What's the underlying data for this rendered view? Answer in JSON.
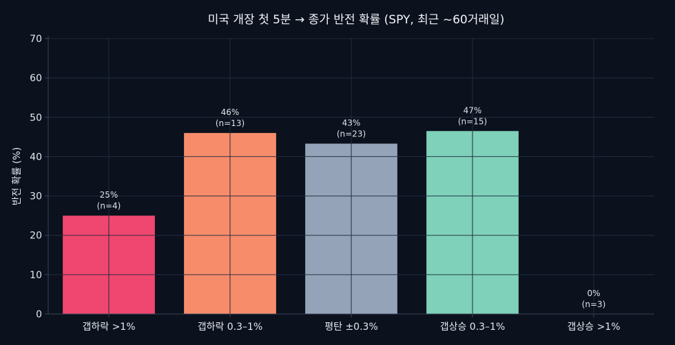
{
  "chart_data": {
    "type": "bar",
    "title": "미국 개장 첫 5분 → 종가 반전 확률 (SPY, 최근 ~60거래일)",
    "xlabel": "",
    "ylabel": "반전 확률 (%)",
    "ylim": [
      0,
      70
    ],
    "yticks": [
      0,
      10,
      20,
      30,
      40,
      50,
      60,
      70
    ],
    "grid": true,
    "categories": [
      "갭하락 >1%",
      "갭하락 0.3–1%",
      "평탄 ±0.3%",
      "갭상승 0.3–1%",
      "갭상승 >1%"
    ],
    "values": [
      25,
      46,
      43.3,
      46.5,
      0
    ],
    "bar_labels": [
      "25%",
      "46%",
      "43%",
      "47%",
      "0%"
    ],
    "sample_labels": [
      "(n=4)",
      "(n=13)",
      "(n=23)",
      "(n=15)",
      "(n=3)"
    ],
    "colors": [
      "#ef476f",
      "#f78c6b",
      "#94a3b8",
      "#7fd1b9",
      "#7fd1b9"
    ],
    "grid_color": "#1f2a3d",
    "axis_color": "#3a4458",
    "background": "#0b111d"
  }
}
